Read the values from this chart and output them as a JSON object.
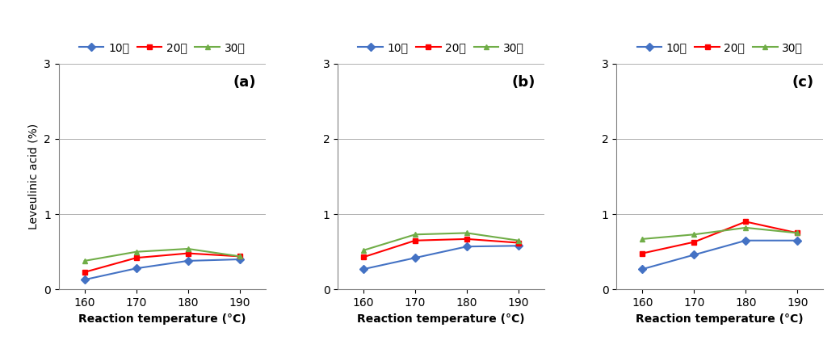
{
  "x": [
    160,
    170,
    180,
    190
  ],
  "panels": [
    {
      "label": "(a)",
      "series": {
        "10분": [
          0.13,
          0.28,
          0.38,
          0.4
        ],
        "20분": [
          0.23,
          0.42,
          0.48,
          0.44
        ],
        "30분": [
          0.38,
          0.5,
          0.54,
          0.44
        ]
      }
    },
    {
      "label": "(b)",
      "series": {
        "10분": [
          0.27,
          0.42,
          0.57,
          0.58
        ],
        "20분": [
          0.43,
          0.65,
          0.67,
          0.62
        ],
        "30분": [
          0.52,
          0.73,
          0.75,
          0.65
        ]
      }
    },
    {
      "label": "(c)",
      "series": {
        "10분": [
          0.27,
          0.46,
          0.65,
          0.65
        ],
        "20분": [
          0.48,
          0.63,
          0.9,
          0.75
        ],
        "30분": [
          0.67,
          0.73,
          0.82,
          0.75
        ]
      }
    }
  ],
  "series_colors": {
    "10분": "#4472C4",
    "20분": "#FF0000",
    "30분": "#70AD47"
  },
  "series_markers": {
    "10분": "D",
    "20분": "s",
    "30분": "^"
  },
  "ylabel": "Leveulinic acid (%)",
  "xlabel": "Reaction temperature (°C)",
  "ylim": [
    0,
    3
  ],
  "yticks": [
    0,
    1,
    2,
    3
  ],
  "xticks": [
    160,
    170,
    180,
    190
  ],
  "legend_order": [
    "10분",
    "20분",
    "30분"
  ],
  "background_color": "#ffffff",
  "grid_color": "#b0b0b0"
}
